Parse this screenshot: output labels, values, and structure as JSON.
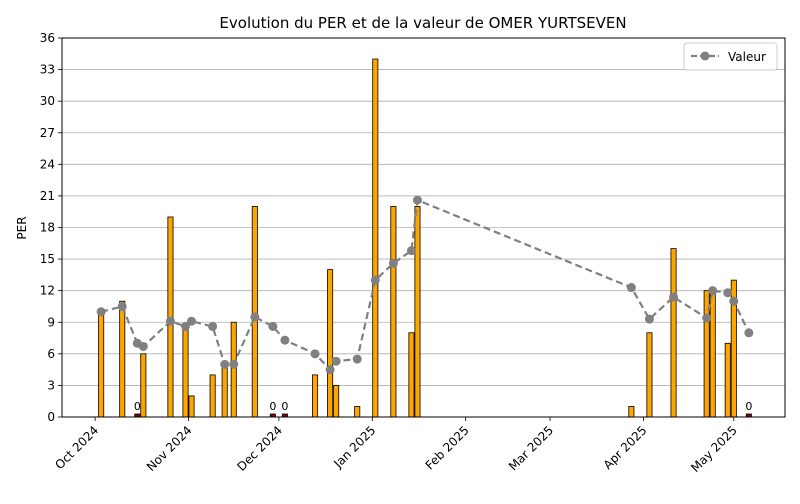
{
  "chart_data": {
    "type": "bar",
    "title": "Evolution du PER et de la valeur de OMER YURTSEVEN",
    "xlabel": "",
    "ylabel": "PER",
    "ylim": [
      0,
      36
    ],
    "yticks": [
      0,
      3,
      6,
      9,
      12,
      15,
      18,
      21,
      24,
      27,
      30,
      33,
      36
    ],
    "xlim": [
      "2024-09-20",
      "2025-05-18"
    ],
    "xticks": [
      {
        "date": "2024-10-01",
        "label": "Oct 2024"
      },
      {
        "date": "2024-11-01",
        "label": "Nov 2024"
      },
      {
        "date": "2024-12-01",
        "label": "Dec 2024"
      },
      {
        "date": "2025-01-01",
        "label": "Jan 2025"
      },
      {
        "date": "2025-02-01",
        "label": "Feb 2025"
      },
      {
        "date": "2025-03-01",
        "label": "Mar 2025"
      },
      {
        "date": "2025-04-01",
        "label": "Apr 2025"
      },
      {
        "date": "2025-05-01",
        "label": "May 2025"
      }
    ],
    "grid": "horizontal",
    "legend_position": "top-right",
    "bar_color": "#FFA500",
    "zero_bar_color": "#8B0000",
    "line_color": "#808080",
    "bars": [
      {
        "date": "2024-10-03",
        "value": 10
      },
      {
        "date": "2024-10-10",
        "value": 11
      },
      {
        "date": "2024-10-15",
        "value": 0,
        "label": "0"
      },
      {
        "date": "2024-10-17",
        "value": 6
      },
      {
        "date": "2024-10-26",
        "value": 19
      },
      {
        "date": "2024-10-31",
        "value": 8.5
      },
      {
        "date": "2024-11-02",
        "value": 2
      },
      {
        "date": "2024-11-09",
        "value": 4
      },
      {
        "date": "2024-11-13",
        "value": 5
      },
      {
        "date": "2024-11-16",
        "value": 9
      },
      {
        "date": "2024-11-23",
        "value": 20
      },
      {
        "date": "2024-11-29",
        "value": 0,
        "label": "0"
      },
      {
        "date": "2024-12-03",
        "value": 0,
        "label": "0"
      },
      {
        "date": "2024-12-13",
        "value": 4
      },
      {
        "date": "2024-12-18",
        "value": 14
      },
      {
        "date": "2024-12-20",
        "value": 3
      },
      {
        "date": "2024-12-27",
        "value": 1
      },
      {
        "date": "2025-01-02",
        "value": 34
      },
      {
        "date": "2025-01-08",
        "value": 20
      },
      {
        "date": "2025-01-14",
        "value": 8
      },
      {
        "date": "2025-01-16",
        "value": 20
      },
      {
        "date": "2025-03-28",
        "value": 1
      },
      {
        "date": "2025-04-03",
        "value": 8
      },
      {
        "date": "2025-04-11",
        "value": 16
      },
      {
        "date": "2025-04-22",
        "value": 12
      },
      {
        "date": "2025-04-24",
        "value": 12
      },
      {
        "date": "2025-04-29",
        "value": 7
      },
      {
        "date": "2025-05-01",
        "value": 13
      },
      {
        "date": "2025-05-06",
        "value": 0,
        "label": "0"
      }
    ],
    "series": [
      {
        "name": "Valeur",
        "type": "line",
        "style": "dashed",
        "marker": "circle",
        "points": [
          {
            "date": "2024-10-03",
            "value": 10
          },
          {
            "date": "2024-10-10",
            "value": 10.5
          },
          {
            "date": "2024-10-15",
            "value": 7
          },
          {
            "date": "2024-10-17",
            "value": 6.7
          },
          {
            "date": "2024-10-26",
            "value": 9.1
          },
          {
            "date": "2024-10-31",
            "value": 8.6
          },
          {
            "date": "2024-11-02",
            "value": 9.1
          },
          {
            "date": "2024-11-09",
            "value": 8.6
          },
          {
            "date": "2024-11-13",
            "value": 5
          },
          {
            "date": "2024-11-16",
            "value": 5
          },
          {
            "date": "2024-11-23",
            "value": 9.5
          },
          {
            "date": "2024-11-29",
            "value": 8.6
          },
          {
            "date": "2024-12-03",
            "value": 7.3
          },
          {
            "date": "2024-12-13",
            "value": 6
          },
          {
            "date": "2024-12-18",
            "value": 4.5
          },
          {
            "date": "2024-12-20",
            "value": 5.3
          },
          {
            "date": "2024-12-27",
            "value": 5.5
          },
          {
            "date": "2025-01-02",
            "value": 13
          },
          {
            "date": "2025-01-08",
            "value": 14.6
          },
          {
            "date": "2025-01-14",
            "value": 15.8
          },
          {
            "date": "2025-01-16",
            "value": 20.6
          },
          {
            "date": "2025-03-28",
            "value": 12.3
          },
          {
            "date": "2025-04-03",
            "value": 9.3
          },
          {
            "date": "2025-04-11",
            "value": 11.4
          },
          {
            "date": "2025-04-22",
            "value": 9.4
          },
          {
            "date": "2025-04-24",
            "value": 12
          },
          {
            "date": "2025-04-29",
            "value": 11.8
          },
          {
            "date": "2025-05-01",
            "value": 11
          },
          {
            "date": "2025-05-06",
            "value": 8
          }
        ]
      }
    ]
  }
}
